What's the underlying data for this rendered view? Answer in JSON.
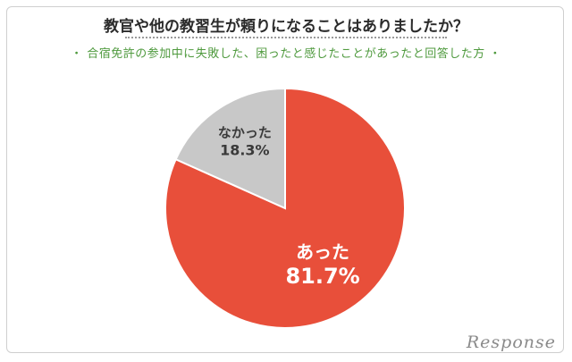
{
  "chart_data": {
    "type": "pie",
    "title": "教官や他の教習生が頼りになることはありましたか？",
    "subtitle": "・ 合宿免許の参加中に失敗した、困ったと感じたことがあったと回答した方 ・",
    "slices": [
      {
        "label": "あった",
        "value": 81.7,
        "display": "81.7%",
        "color": "#e84f3a"
      },
      {
        "label": "なかった",
        "value": 18.3,
        "display": "18.3%",
        "color": "#c8c8c8"
      }
    ],
    "start_angle_deg": 0,
    "direction": "clockwise"
  },
  "logo": {
    "text": "Response",
    "color": "#8a8a8a"
  }
}
